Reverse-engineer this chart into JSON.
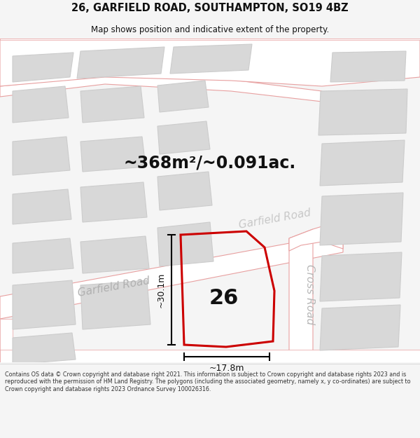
{
  "title": "26, GARFIELD ROAD, SOUTHAMPTON, SO19 4BZ",
  "subtitle": "Map shows position and indicative extent of the property.",
  "area_label": "~368m²/~0.091ac.",
  "property_number": "26",
  "dim_height": "~30.1m",
  "dim_width": "~17.8m",
  "footer_text": "Contains OS data © Crown copyright and database right 2021. This information is subject to Crown copyright and database rights 2023 and is reproduced with the permission of HM Land Registry. The polygons (including the associated geometry, namely x, y co-ordinates) are subject to Crown copyright and database rights 2023 Ordnance Survey 100026316.",
  "bg_color": "#f5f5f5",
  "map_bg": "#f5f5f5",
  "road_fill": "#ffffff",
  "road_stroke": "#e8a0a0",
  "building_fill": "#d8d8d8",
  "building_stroke": "#cccccc",
  "property_fill": "none",
  "property_stroke": "#cc0000",
  "title_color": "#111111",
  "road_label_color": "#aaaaaa",
  "annotation_color": "#111111",
  "footer_bg": "#ffffff"
}
